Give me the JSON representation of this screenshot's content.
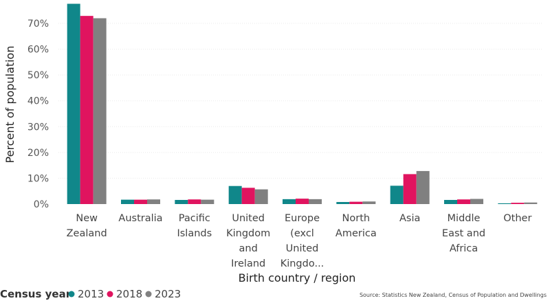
{
  "chart_data": {
    "type": "bar",
    "xlabel": "Birth country / region",
    "ylabel": "Percent of population",
    "ylim": [
      0,
      78
    ],
    "yticks": [
      0,
      10,
      20,
      30,
      40,
      50,
      60,
      70
    ],
    "ytick_suffix": "%",
    "categories": [
      [
        "New",
        "Zealand"
      ],
      [
        "Australia"
      ],
      [
        "Pacific",
        "Islands"
      ],
      [
        "United",
        "Kingdom",
        "and",
        "Ireland"
      ],
      [
        "Europe",
        "(excl",
        "United",
        "Kingdo..."
      ],
      [
        "North",
        "America"
      ],
      [
        "Asia"
      ],
      [
        "Middle",
        "East and",
        "Africa"
      ],
      [
        "Other"
      ]
    ],
    "series": [
      {
        "name": "2013",
        "color": "#10878a",
        "values": [
          77.6,
          1.7,
          1.6,
          7.0,
          1.9,
          0.8,
          7.1,
          1.6,
          0.3
        ]
      },
      {
        "name": "2018",
        "color": "#e0145f",
        "values": [
          72.9,
          1.7,
          1.8,
          6.3,
          2.1,
          0.9,
          11.6,
          1.8,
          0.5
        ]
      },
      {
        "name": "2023",
        "color": "#808080",
        "values": [
          72.0,
          1.8,
          1.7,
          5.7,
          1.9,
          1.0,
          12.8,
          2.0,
          0.6
        ]
      }
    ],
    "legend": {
      "title": "Census year",
      "placement": "bottom-left"
    },
    "source": "Source: Statistics New Zealand, Census of Population and Dwellings"
  }
}
